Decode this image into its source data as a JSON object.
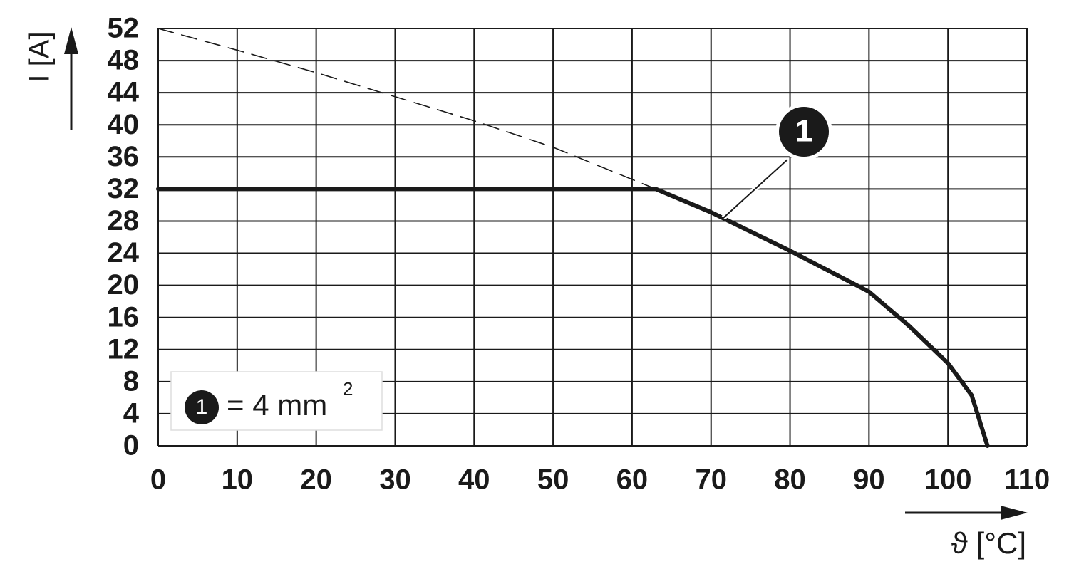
{
  "chart_data": {
    "type": "line",
    "x_label": "ϑ [°C]",
    "y_label": "I [A]",
    "x": [
      0,
      10,
      20,
      30,
      40,
      50,
      60,
      63,
      70,
      80,
      90,
      95,
      100,
      103,
      105
    ],
    "series": [
      {
        "color": "#1a1a1a",
        "style": "solid",
        "values": [
          32,
          32,
          32,
          32,
          32,
          32,
          32,
          32,
          29.1,
          24.3,
          19.2,
          15,
          10.3,
          6.3,
          0
        ]
      },
      {
        "color": "#1a1a1a",
        "style": "dashed",
        "values": [
          52,
          49.3,
          46.5,
          43.5,
          40.5,
          37.2,
          33.2,
          32,
          null,
          null,
          null,
          null,
          null,
          null,
          null
        ]
      }
    ],
    "xlim": [
      0,
      110
    ],
    "xticks": [
      0,
      10,
      20,
      30,
      40,
      50,
      60,
      70,
      80,
      90,
      100,
      110
    ],
    "ylim": [
      0,
      52
    ],
    "yticks": [
      0,
      4,
      8,
      12,
      16,
      20,
      24,
      28,
      32,
      36,
      40,
      44,
      48,
      52
    ],
    "grid": true,
    "annotation": {
      "marker": "1",
      "legend_text": "= 4 mm",
      "legend_superscript": "2"
    }
  }
}
